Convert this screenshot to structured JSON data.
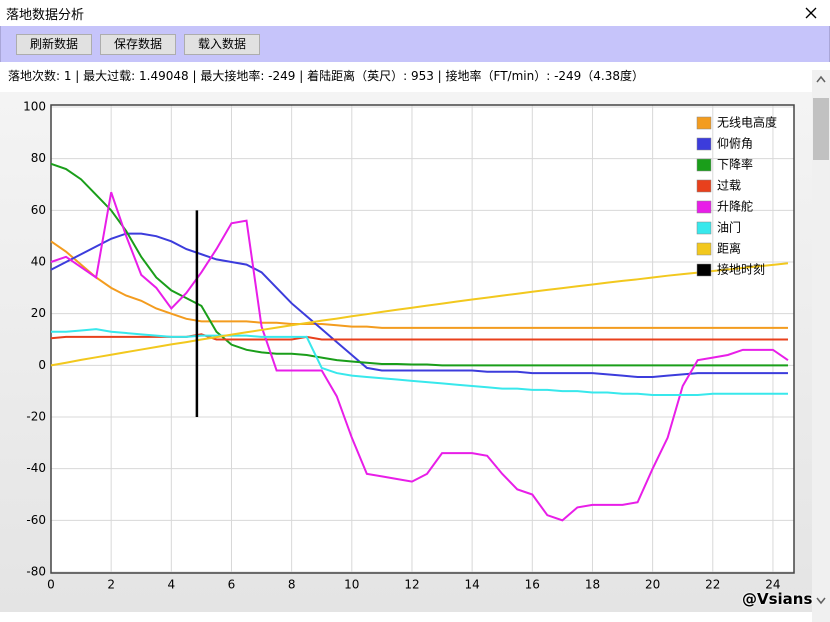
{
  "window": {
    "title": "落地数据分析"
  },
  "toolbar": {
    "buttons": [
      "刷新数据",
      "保存数据",
      "载入数据"
    ]
  },
  "info": "落地次数: 1 | 最大过载: 1.49048 | 最大接地率: -249 | 着陆距离（英尺）: 953 | 接地率（FT/min）: -249（4.38度）",
  "watermark": "@Vsians",
  "chart_data": {
    "type": "line",
    "xlim": [
      0,
      24.7
    ],
    "xticks": [
      0,
      2,
      4,
      6,
      8,
      10,
      12,
      14,
      16,
      18,
      20,
      22,
      24
    ],
    "ylim": [
      -80,
      100
    ],
    "yticks": [
      -80,
      -60,
      -40,
      -20,
      0,
      20,
      40,
      60,
      80,
      100
    ],
    "grid": true,
    "legend": "top-right",
    "x": [
      0,
      0.5,
      1,
      1.5,
      2,
      2.5,
      3,
      3.5,
      4,
      4.5,
      5,
      5.5,
      6,
      6.5,
      7,
      7.5,
      8,
      8.5,
      9,
      9.5,
      10,
      10.5,
      11,
      11.5,
      12,
      12.5,
      13,
      13.5,
      14,
      14.5,
      15,
      15.5,
      16,
      16.5,
      17,
      17.5,
      18,
      18.5,
      19,
      19.5,
      20,
      20.5,
      21,
      21.5,
      22,
      22.5,
      23,
      23.5,
      24,
      24.5
    ],
    "series": [
      {
        "name": "无线电高度",
        "color": "#f39c1f",
        "values": [
          48,
          44,
          39,
          34,
          30,
          27,
          25,
          22,
          20,
          18,
          17,
          17,
          17,
          17,
          16.5,
          16.5,
          16,
          16,
          16,
          15.5,
          15,
          15,
          14.5,
          14.5,
          14.5,
          14.5,
          14.5,
          14.5,
          14.5,
          14.5,
          14.5,
          14.5,
          14.5,
          14.5,
          14.5,
          14.5,
          14.5,
          14.5,
          14.5,
          14.5,
          14.5,
          14.5,
          14.5,
          14.5,
          14.5,
          14.5,
          14.5,
          14.5,
          14.5,
          14.5
        ]
      },
      {
        "name": "仰俯角",
        "color": "#3c3cdc",
        "values": [
          37,
          40,
          43,
          46,
          49,
          51,
          51,
          50,
          48,
          45,
          43,
          41,
          40,
          39,
          36,
          30,
          24,
          19,
          14,
          9,
          4,
          -1,
          -2,
          -2,
          -2,
          -2,
          -2,
          -2,
          -2,
          -2.5,
          -2.5,
          -2.5,
          -3,
          -3,
          -3,
          -3,
          -3,
          -3.5,
          -4,
          -4.5,
          -4.5,
          -4,
          -3.5,
          -3,
          -3,
          -3,
          -3,
          -3,
          -3,
          -3
        ]
      },
      {
        "name": "下降率",
        "color": "#1a9e1a",
        "values": [
          78,
          76,
          72,
          66,
          60,
          52,
          42,
          34,
          29,
          26,
          23,
          13,
          8,
          6,
          5,
          4.5,
          4.5,
          4,
          3,
          2,
          1.5,
          1,
          0.5,
          0.5,
          0.3,
          0.3,
          0,
          0,
          0,
          0,
          0,
          0,
          0,
          0,
          0,
          0,
          0,
          0,
          0,
          0,
          0,
          0,
          0,
          0,
          0,
          0,
          0,
          0,
          0,
          0
        ]
      },
      {
        "name": "过载",
        "color": "#e8401c",
        "values": [
          10.5,
          11,
          11,
          11,
          11,
          11,
          11,
          11,
          11,
          11,
          12,
          10,
          10,
          10,
          10,
          10,
          10,
          11,
          10,
          10,
          10,
          10,
          10,
          10,
          10,
          10,
          10,
          10,
          10,
          10,
          10,
          10,
          10,
          10,
          10,
          10,
          10,
          10,
          10,
          10,
          10,
          10,
          10,
          10,
          10,
          10,
          10,
          10,
          10,
          10
        ]
      },
      {
        "name": "升降舵",
        "color": "#e81ee8",
        "values": [
          40,
          42,
          38,
          34,
          67,
          50,
          35,
          30,
          22,
          28,
          36,
          45,
          55,
          56,
          15,
          -2,
          -2,
          -2,
          -2,
          -12,
          -28,
          -42,
          -43,
          -44,
          -45,
          -42,
          -34,
          -34,
          -34,
          -35,
          -42,
          -48,
          -50,
          -58,
          -60,
          -55,
          -54,
          -54,
          -54,
          -53,
          -40,
          -28,
          -8,
          2,
          3,
          4,
          6,
          6,
          6,
          2
        ]
      },
      {
        "name": "油门",
        "color": "#38e8ec",
        "values": [
          13,
          13,
          13.5,
          14,
          13,
          12.5,
          12,
          11.5,
          11,
          11,
          11.5,
          11.5,
          11.5,
          11.5,
          11,
          11,
          11,
          11,
          -1,
          -3,
          -4,
          -4.5,
          -5,
          -5.5,
          -6,
          -6.5,
          -7,
          -7.5,
          -8,
          -8.5,
          -9,
          -9,
          -9.5,
          -9.5,
          -10,
          -10,
          -10.5,
          -10.5,
          -11,
          -11,
          -11.5,
          -11.5,
          -11.5,
          -11.5,
          -11,
          -11,
          -11,
          -11,
          -11,
          -11
        ]
      },
      {
        "name": "距离",
        "color": "#f2c81e",
        "values": [
          0,
          1.0,
          2.1,
          3.1,
          4.1,
          5.1,
          6.1,
          7.1,
          8.1,
          9.0,
          10.0,
          10.9,
          11.9,
          12.8,
          13.7,
          14.6,
          15.5,
          16.4,
          17.3,
          18.1,
          19.0,
          19.8,
          20.7,
          21.5,
          22.3,
          23.1,
          23.9,
          24.7,
          25.5,
          26.2,
          27.0,
          27.7,
          28.5,
          29.2,
          29.9,
          30.6,
          31.3,
          32.0,
          32.7,
          33.3,
          34.0,
          34.7,
          35.3,
          35.9,
          36.5,
          37.1,
          37.7,
          38.3,
          38.9,
          39.5
        ]
      },
      {
        "name": "接地时刻",
        "color": "#000000",
        "x": [
          4.85,
          4.85
        ],
        "values": [
          60,
          -20
        ]
      }
    ]
  }
}
